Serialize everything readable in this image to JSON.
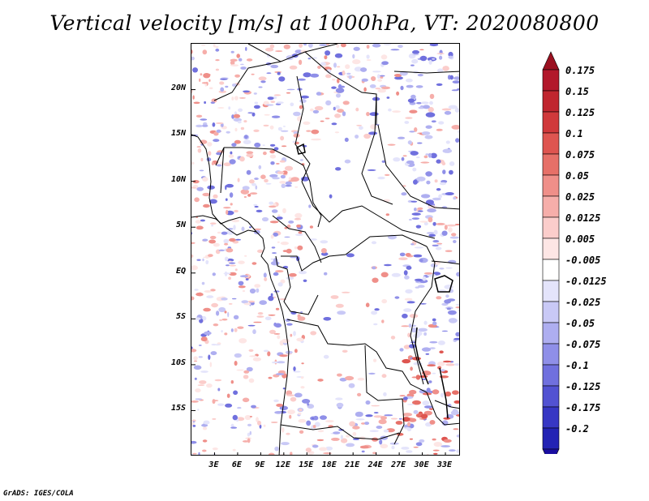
{
  "title": "Vertical velocity [m/s] at 1000hPa, VT: 2020080800",
  "footer": "GrADS: IGES/COLA",
  "map": {
    "lon_range": [
      0,
      35
    ],
    "lat_range": [
      -20,
      25
    ],
    "y_axis_labels": [
      {
        "text": "20N",
        "lat": 20
      },
      {
        "text": "15N",
        "lat": 15
      },
      {
        "text": "10N",
        "lat": 10
      },
      {
        "text": "5N",
        "lat": 5
      },
      {
        "text": "EQ",
        "lat": 0
      },
      {
        "text": "5S",
        "lat": -5
      },
      {
        "text": "10S",
        "lat": -10
      },
      {
        "text": "15S",
        "lat": -15
      }
    ],
    "x_axis_labels": [
      {
        "text": "3E",
        "lon": 3
      },
      {
        "text": "6E",
        "lon": 6
      },
      {
        "text": "9E",
        "lon": 9
      },
      {
        "text": "12E",
        "lon": 12
      },
      {
        "text": "15E",
        "lon": 15
      },
      {
        "text": "18E",
        "lon": 18
      },
      {
        "text": "21E",
        "lon": 21
      },
      {
        "text": "24E",
        "lon": 24
      },
      {
        "text": "27E",
        "lon": 27
      },
      {
        "text": "30E",
        "lon": 30
      },
      {
        "text": "33E",
        "lon": 33
      }
    ]
  },
  "colorbar": {
    "levels": [
      {
        "label": "0.175",
        "color": "#b2182b"
      },
      {
        "label": "0.15",
        "color": "#c0262f"
      },
      {
        "label": "0.125",
        "color": "#d0393b"
      },
      {
        "label": "0.1",
        "color": "#de5550"
      },
      {
        "label": "0.075",
        "color": "#e67068"
      },
      {
        "label": "0.05",
        "color": "#ef8f89"
      },
      {
        "label": "0.025",
        "color": "#f6aeaa"
      },
      {
        "label": "0.0125",
        "color": "#fbcdcb"
      },
      {
        "label": "0.005",
        "color": "#fde6e5"
      },
      {
        "label": "-0.005",
        "color": "#ffffff"
      },
      {
        "label": "-0.0125",
        "color": "#e4e4fb"
      },
      {
        "label": "-0.025",
        "color": "#c9c9f6"
      },
      {
        "label": "-0.05",
        "color": "#aeaef0"
      },
      {
        "label": "-0.075",
        "color": "#8f8fe8"
      },
      {
        "label": "-0.1",
        "color": "#7070de"
      },
      {
        "label": "-0.125",
        "color": "#5252d2"
      },
      {
        "label": "-0.175",
        "color": "#3737c4"
      },
      {
        "label": "-0.2",
        "color": "#2323b4"
      }
    ],
    "top_color": "#9b1020",
    "bottom_color": "#1a0ea0"
  }
}
